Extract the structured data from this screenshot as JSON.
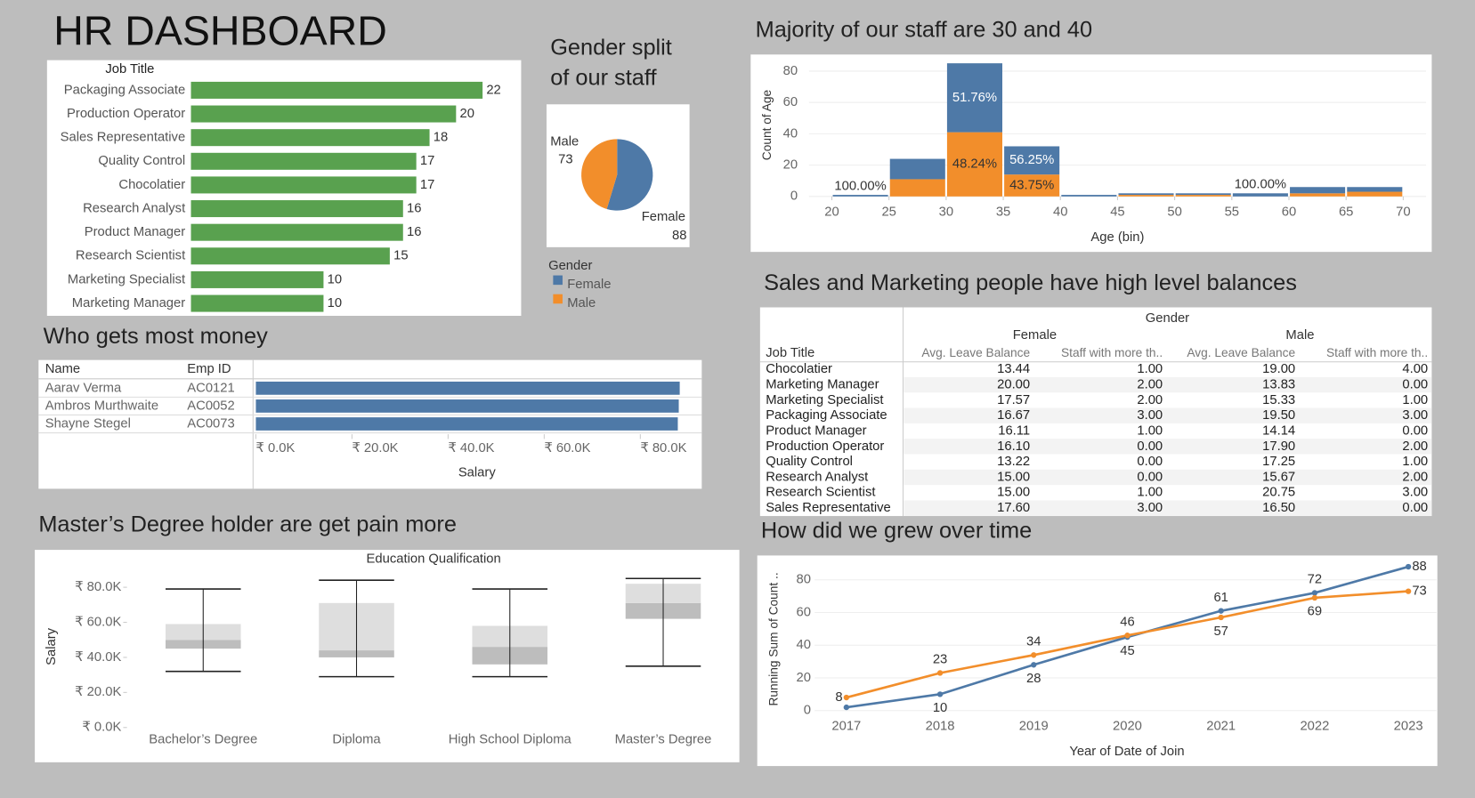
{
  "title": "HR DASHBOARD",
  "chart_data": [
    {
      "type": "bar",
      "orientation": "horizontal",
      "category_label": "Job Title",
      "categories": [
        "Packaging Associate",
        "Production Operator",
        "Sales Representative",
        "Quality Control",
        "Chocolatier",
        "Research Analyst",
        "Product Manager",
        "Research Scientist",
        "Marketing Specialist",
        "Marketing Manager"
      ],
      "values": [
        22,
        20,
        18,
        17,
        17,
        16,
        16,
        15,
        10,
        10
      ],
      "color": "#59a14f"
    },
    {
      "type": "pie",
      "title_lines": [
        "Gender split",
        "of our staff"
      ],
      "legend_title": "Gender",
      "categories": [
        "Female",
        "Male"
      ],
      "values": [
        88,
        73
      ],
      "colors": [
        "#4e79a7",
        "#f28e2b"
      ]
    },
    {
      "type": "histogram",
      "title": "Majority of our staff are 30 and 40",
      "x_label": "Age (bin)",
      "y_label": "Count of Age",
      "bins": [
        20,
        25,
        30,
        35,
        40,
        45,
        50,
        55,
        60,
        65,
        70
      ],
      "series": [
        {
          "name": "Male",
          "color": "#f28e2b",
          "values": [
            0,
            11,
            41,
            14,
            0,
            1,
            1,
            0,
            2,
            3
          ],
          "share_labels": [
            null,
            null,
            "48.24%",
            "43.75%",
            null,
            null,
            null,
            null,
            null,
            null
          ]
        },
        {
          "name": "Female",
          "color": "#4e79a7",
          "values": [
            1,
            13,
            44,
            18,
            1,
            1,
            1,
            2,
            4,
            3
          ],
          "share_labels": [
            "100.00%",
            null,
            "51.76%",
            "56.25%",
            null,
            null,
            null,
            "100.00%",
            null,
            null
          ]
        }
      ],
      "xlim": [
        18,
        72
      ],
      "ylim": [
        0,
        90
      ],
      "xticks": [
        20,
        25,
        30,
        35,
        40,
        45,
        50,
        55,
        60,
        65,
        70
      ],
      "yticks": [
        0,
        20,
        40,
        60,
        80
      ],
      "grid": true
    },
    {
      "type": "bar_table",
      "title": "Who gets most money",
      "columns": [
        "Name",
        "Emp ID"
      ],
      "rows": [
        [
          "Aarav Verma",
          "AC0121"
        ],
        [
          "Ambros Murthwaite",
          "AC0052"
        ],
        [
          "Shayne Stegel",
          "AC0073"
        ]
      ],
      "values": [
        88200,
        88000,
        87800
      ],
      "color": "#4e79a7",
      "x_label": "Salary",
      "xlim": [
        0,
        92000
      ],
      "xticks": [
        {
          "value": 0,
          "label": "₹ 0.0K"
        },
        {
          "value": 20000,
          "label": "₹ 20.0K"
        },
        {
          "value": 40000,
          "label": "₹ 40.0K"
        },
        {
          "value": 60000,
          "label": "₹ 60.0K"
        },
        {
          "value": 80000,
          "label": "₹ 80.0K"
        }
      ]
    },
    {
      "type": "box",
      "title": "Master’s Degree holder are get pain more",
      "x_label": "Education Qualification",
      "y_label": "Salary",
      "categories": [
        "Bachelor’s Degree",
        "Diploma",
        "High School Diploma",
        "Master’s Degree"
      ],
      "min": [
        32000,
        29000,
        29000,
        35000
      ],
      "q1": [
        45000,
        40000,
        36000,
        62000
      ],
      "median": [
        50000,
        44000,
        46000,
        71000
      ],
      "q3": [
        59000,
        71000,
        58000,
        82000
      ],
      "max": [
        79000,
        84000,
        79000,
        85000
      ],
      "ylim": [
        0,
        89000
      ],
      "yticks": [
        {
          "value": 0,
          "label": "₹ 0.0K"
        },
        {
          "value": 20000,
          "label": "₹ 20.0K"
        },
        {
          "value": 40000,
          "label": "₹ 40.0K"
        },
        {
          "value": 60000,
          "label": "₹ 60.0K"
        },
        {
          "value": 80000,
          "label": "₹ 80.0K"
        }
      ]
    },
    {
      "type": "table",
      "title": "Sales and Marketing people have high level balances",
      "column_group": "Gender",
      "groups": [
        "Female",
        "Male"
      ],
      "row_header": "Job Title",
      "columns": [
        "Avg. Leave Balance",
        "Staff with more th.."
      ],
      "rows": [
        [
          "Chocolatier",
          "13.44",
          "1.00",
          "19.00",
          "4.00"
        ],
        [
          "Marketing Manager",
          "20.00",
          "2.00",
          "13.83",
          "0.00"
        ],
        [
          "Marketing Specialist",
          "17.57",
          "2.00",
          "15.33",
          "1.00"
        ],
        [
          "Packaging Associate",
          "16.67",
          "3.00",
          "19.50",
          "3.00"
        ],
        [
          "Product Manager",
          "16.11",
          "1.00",
          "14.14",
          "0.00"
        ],
        [
          "Production Operator",
          "16.10",
          "0.00",
          "17.90",
          "2.00"
        ],
        [
          "Quality Control",
          "13.22",
          "0.00",
          "17.25",
          "1.00"
        ],
        [
          "Research Analyst",
          "15.00",
          "0.00",
          "15.67",
          "2.00"
        ],
        [
          "Research Scientist",
          "15.00",
          "1.00",
          "20.75",
          "3.00"
        ],
        [
          "Sales Representative",
          "17.60",
          "3.00",
          "16.50",
          "0.00"
        ]
      ]
    },
    {
      "type": "line",
      "title": "How did we grew over time",
      "x_label": "Year of Date of Join",
      "y_label": "Running Sum of Count ..",
      "x": [
        2017,
        2018,
        2019,
        2020,
        2021,
        2022,
        2023
      ],
      "series": [
        {
          "name": "Female",
          "color": "#4e79a7",
          "values": [
            2,
            10,
            28,
            45,
            61,
            72,
            88
          ],
          "value_labels": [
            null,
            "10",
            "28",
            "45",
            "61",
            "72",
            "88"
          ]
        },
        {
          "name": "Male",
          "color": "#f28e2b",
          "values": [
            8,
            23,
            34,
            46,
            57,
            69,
            73
          ]
        }
      ],
      "xlim": [
        2016.5,
        2023.3
      ],
      "ylim": [
        0,
        92
      ],
      "yticks": [
        0,
        20,
        40,
        60,
        80
      ],
      "grid": true
    }
  ]
}
